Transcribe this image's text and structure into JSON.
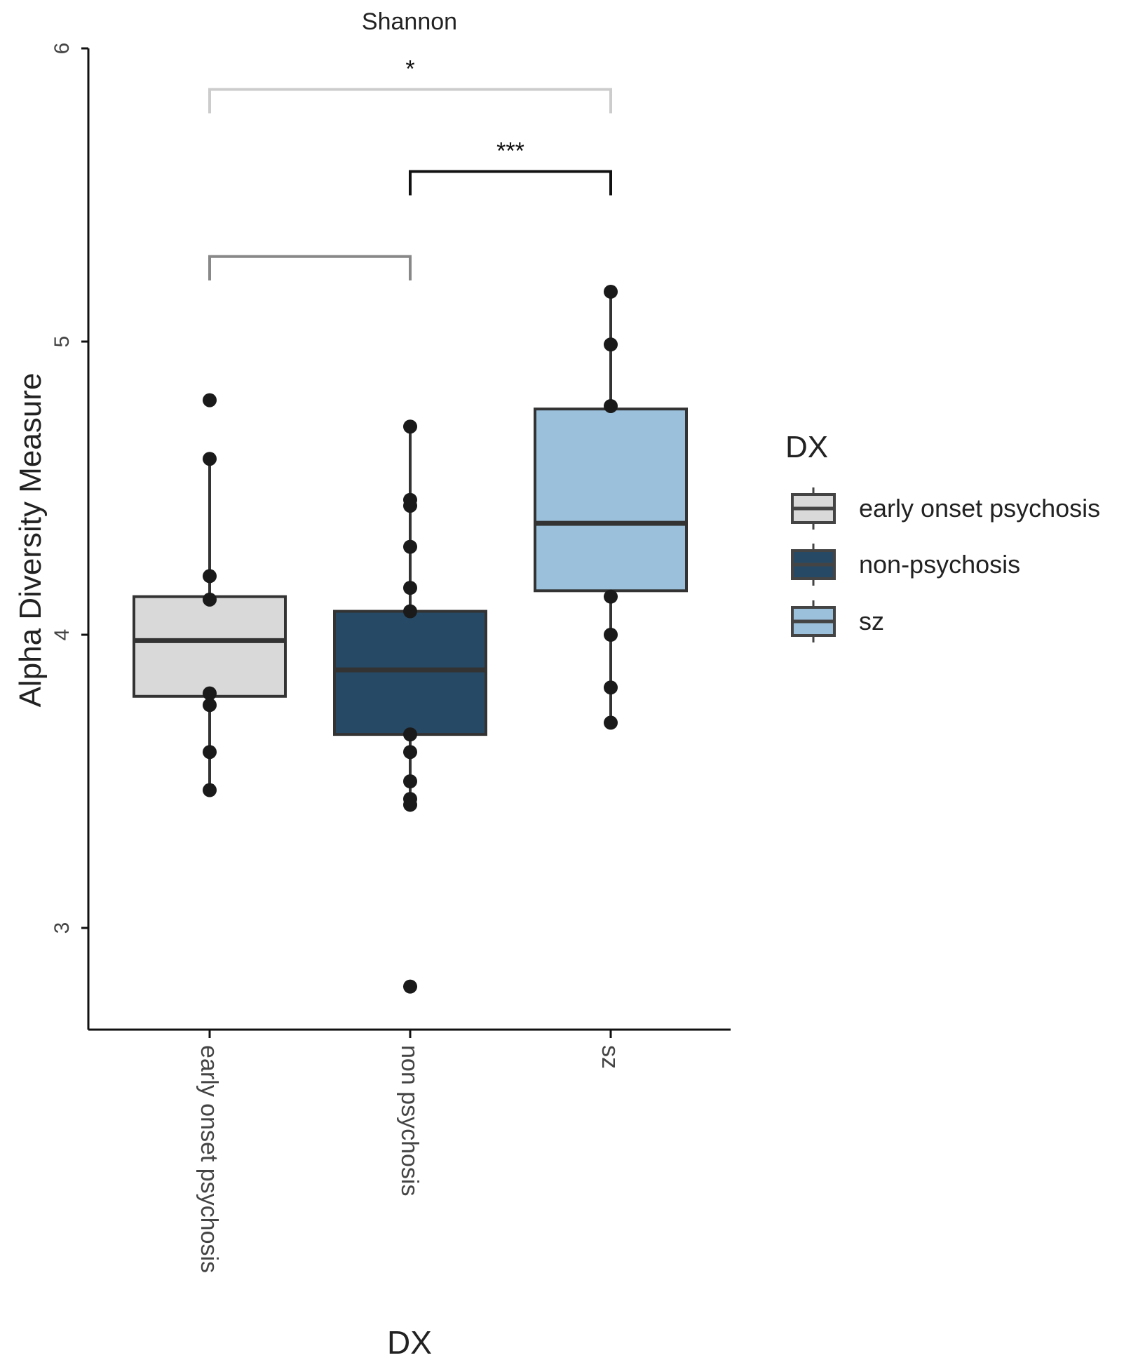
{
  "chart_data": {
    "type": "boxplot",
    "title": "Shannon",
    "xlabel": "DX",
    "ylabel": "Alpha Diversity Measure",
    "ylim": [
      2.65,
      6.0
    ],
    "yticks": [
      3,
      4,
      5,
      6
    ],
    "categories": [
      "early onset psychosis",
      "non-psychosis",
      "sz"
    ],
    "tick_labels": [
      "early onset psychosis",
      "non psychosis",
      "sz"
    ],
    "boxes": [
      {
        "name": "early onset psychosis",
        "color": "#d9d9d9",
        "whisker_low": 3.47,
        "q1": 3.79,
        "median": 3.98,
        "q3": 4.13,
        "whisker_high": 4.6,
        "points": [
          4.8,
          4.6,
          4.2,
          4.12,
          3.8,
          3.76,
          3.6,
          3.47
        ]
      },
      {
        "name": "non-psychosis",
        "color": "#264a66",
        "whisker_low": 3.42,
        "q1": 3.66,
        "median": 3.88,
        "q3": 4.08,
        "whisker_high": 4.71,
        "points": [
          4.71,
          4.46,
          4.44,
          4.3,
          4.16,
          4.08,
          3.66,
          3.6,
          3.5,
          3.44,
          3.42,
          2.8
        ]
      },
      {
        "name": "sz",
        "color": "#9bc0db",
        "whisker_low": 3.7,
        "q1": 4.15,
        "median": 4.38,
        "q3": 4.77,
        "whisker_high": 5.17,
        "points": [
          5.17,
          4.99,
          4.78,
          4.13,
          4.0,
          3.82,
          3.7
        ]
      }
    ],
    "comparisons": [
      {
        "groups": [
          "early onset psychosis",
          "non-psychosis"
        ],
        "y": 5.29,
        "label": "",
        "color": "#888888"
      },
      {
        "groups": [
          "non-psychosis",
          "sz"
        ],
        "y": 5.58,
        "label": "***",
        "color": "#111111"
      },
      {
        "groups": [
          "early onset psychosis",
          "sz"
        ],
        "y": 5.86,
        "label": "*",
        "color": "#cccccc"
      }
    ],
    "legend": {
      "title": "DX",
      "position": "right",
      "entries": [
        "early onset psychosis",
        "non-psychosis",
        "sz"
      ]
    }
  }
}
